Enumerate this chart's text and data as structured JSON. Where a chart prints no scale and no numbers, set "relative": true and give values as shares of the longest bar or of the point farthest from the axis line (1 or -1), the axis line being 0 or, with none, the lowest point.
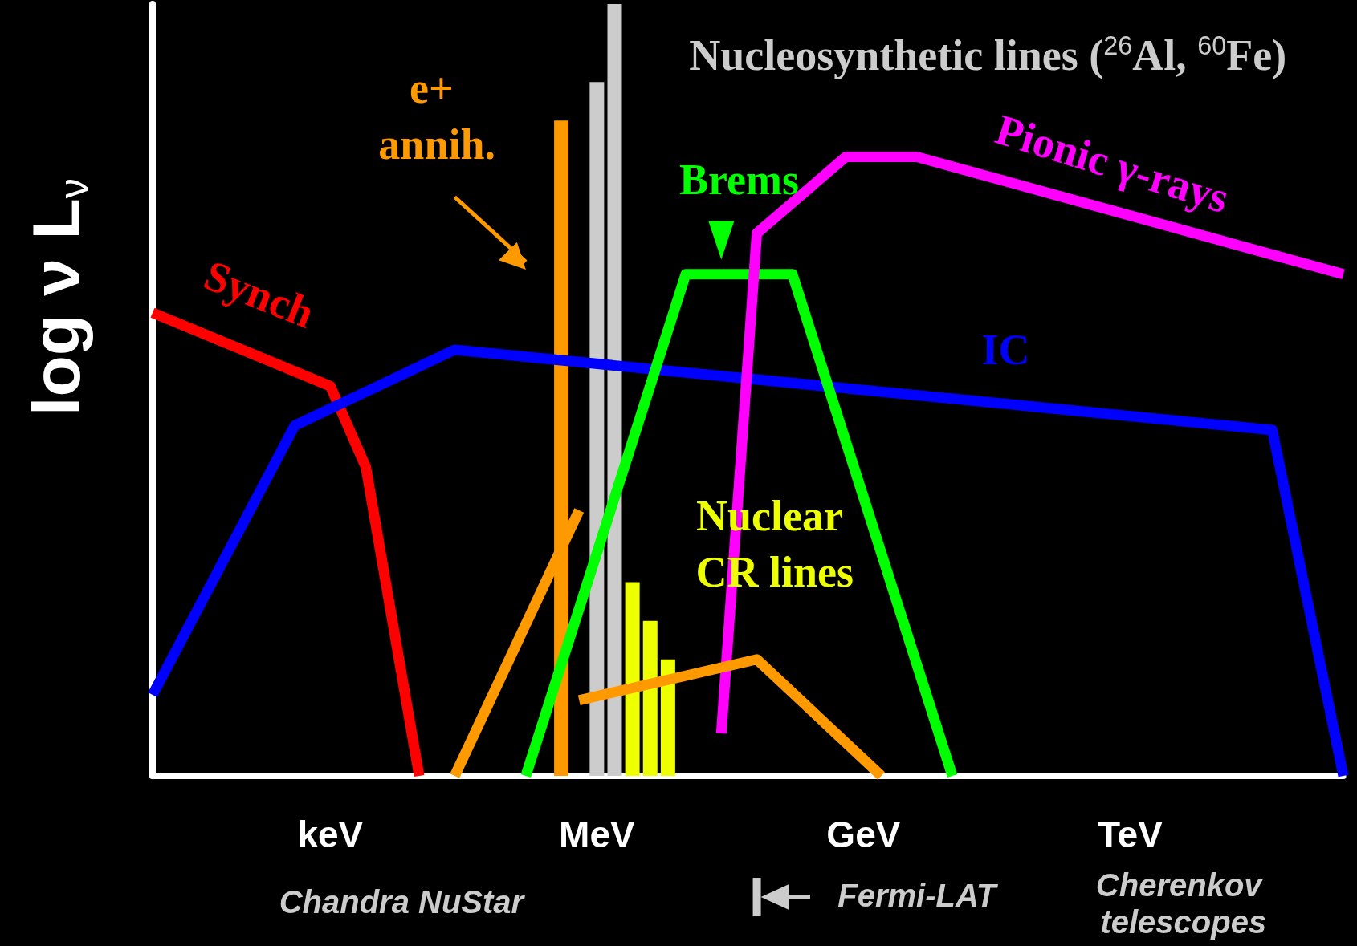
{
  "chart_data": {
    "type": "line",
    "relative": true,
    "ylabel": "log ν L$_{ν}$",
    "legend": false,
    "grid": false,
    "marker": "none",
    "categories": [
      null,
      null,
      null,
      null,
      null,
      null,
      null,
      null,
      null,
      null,
      "keV",
      null,
      null,
      null,
      null,
      null,
      null,
      null,
      null,
      null,
      null,
      null,
      null,
      null,
      null,
      "MeV",
      null,
      null,
      null,
      null,
      null,
      null,
      null,
      null,
      null,
      null,
      null,
      null,
      null,
      null,
      "GeV",
      null,
      null,
      null,
      null,
      null,
      null,
      null,
      null,
      null,
      null,
      null,
      null,
      null,
      null,
      "TeV",
      null,
      null,
      null,
      null,
      null,
      null,
      null,
      null,
      null,
      null,
      null,
      null
    ],
    "annotations": [
      "Chandra NuStar",
      "Fermi-LAT",
      "Cherenkov telescopes"
    ],
    "series": [
      {
        "name": "Synch",
        "color": "#ff0000",
        "values": [
          0.6,
          null,
          null,
          null,
          null,
          null,
          null,
          null,
          null,
          null,
          0.505,
          null,
          0.4,
          null,
          null,
          0,
          null,
          null,
          null,
          null,
          null,
          null,
          null,
          null,
          null,
          null,
          null,
          null,
          null,
          null,
          null,
          null,
          null,
          null,
          null,
          null,
          null,
          null,
          null,
          null,
          null,
          null,
          null,
          null,
          null,
          null,
          null,
          null,
          null,
          null,
          null,
          null,
          null,
          null,
          null,
          null,
          null,
          null,
          null,
          null,
          null,
          null,
          null,
          null,
          null,
          null,
          null,
          null
        ]
      },
      {
        "name": "IC",
        "color": "#0000ff",
        "values": [
          0.105,
          null,
          null,
          null,
          null,
          null,
          null,
          null,
          0.454,
          null,
          null,
          null,
          null,
          null,
          null,
          null,
          null,
          0.552,
          null,
          null,
          null,
          null,
          null,
          null,
          null,
          null,
          null,
          null,
          null,
          null,
          null,
          null,
          null,
          null,
          null,
          null,
          null,
          null,
          null,
          null,
          null,
          null,
          null,
          null,
          null,
          null,
          null,
          null,
          null,
          null,
          null,
          null,
          null,
          null,
          null,
          null,
          null,
          null,
          null,
          null,
          null,
          null,
          null,
          0.448,
          null,
          null,
          null,
          0
        ]
      },
      {
        "name": "Brems",
        "color": "#00ff00",
        "values": [
          null,
          null,
          null,
          null,
          null,
          null,
          null,
          null,
          null,
          null,
          null,
          null,
          null,
          null,
          null,
          null,
          null,
          null,
          null,
          null,
          null,
          0,
          null,
          null,
          null,
          null,
          null,
          null,
          null,
          null,
          0.65,
          null,
          null,
          null,
          null,
          null,
          0.65,
          null,
          null,
          null,
          null,
          null,
          null,
          null,
          null,
          0,
          null,
          null,
          null,
          null,
          null,
          null,
          null,
          null,
          null,
          null,
          null,
          null,
          null,
          null,
          null,
          null,
          null,
          null,
          null,
          null,
          null,
          null
        ]
      },
      {
        "name": "Pionic γ-rays",
        "color": "#ff00ff",
        "values": [
          null,
          null,
          null,
          null,
          null,
          null,
          null,
          null,
          null,
          null,
          null,
          null,
          null,
          null,
          null,
          null,
          null,
          null,
          null,
          null,
          null,
          null,
          null,
          null,
          null,
          null,
          null,
          null,
          null,
          null,
          null,
          null,
          0.055,
          null,
          0.703,
          null,
          null,
          null,
          null,
          0.802,
          null,
          null,
          null,
          0.802,
          null,
          null,
          null,
          null,
          null,
          null,
          null,
          null,
          null,
          null,
          null,
          null,
          null,
          null,
          null,
          null,
          null,
          null,
          null,
          null,
          null,
          null,
          null,
          0.65
        ]
      },
      {
        "color": "#ff9900",
        "values": [
          null,
          null,
          null,
          null,
          null,
          null,
          null,
          null,
          null,
          null,
          null,
          null,
          null,
          null,
          null,
          null,
          null,
          0,
          null,
          null,
          null,
          null,
          null,
          null,
          0.344,
          null,
          null,
          null,
          null,
          null,
          null,
          null,
          null,
          null,
          null,
          null,
          null,
          null,
          null,
          null,
          null,
          null,
          null,
          null,
          null,
          null,
          null,
          null,
          null,
          null,
          null,
          null,
          null,
          null,
          null,
          null,
          null,
          null,
          null,
          null,
          null,
          null,
          null,
          null,
          null,
          null,
          null,
          null
        ]
      },
      {
        "color": "#ff9900",
        "values": [
          null,
          null,
          null,
          null,
          null,
          null,
          null,
          null,
          null,
          null,
          null,
          null,
          null,
          null,
          null,
          null,
          null,
          null,
          null,
          null,
          null,
          null,
          null,
          null,
          0.098,
          null,
          null,
          null,
          null,
          null,
          null,
          null,
          null,
          null,
          0.151,
          null,
          null,
          null,
          null,
          null,
          null,
          0,
          null,
          null,
          null,
          null,
          null,
          null,
          null,
          null,
          null,
          null,
          null,
          null,
          null,
          null,
          null,
          null,
          null,
          null,
          null,
          null,
          null,
          null,
          null,
          null,
          null,
          null
        ]
      },
      {
        "name": "e+ annih.",
        "type": "bar",
        "color": "#ff9900",
        "values": [
          null,
          null,
          null,
          null,
          null,
          null,
          null,
          null,
          null,
          null,
          null,
          null,
          null,
          null,
          null,
          null,
          null,
          null,
          null,
          null,
          null,
          null,
          null,
          0.849,
          null,
          null,
          null,
          null,
          null,
          null,
          null,
          null,
          null,
          null,
          null,
          null,
          null,
          null,
          null,
          null,
          null,
          null,
          null,
          null,
          null,
          null,
          null,
          null,
          null,
          null,
          null,
          null,
          null,
          null,
          null,
          null,
          null,
          null,
          null,
          null,
          null,
          null,
          null,
          null,
          null,
          null,
          null,
          null
        ]
      },
      {
        "name": "Nucleosynthetic lines ($^{26}$Al, $^{60}$Fe)",
        "type": "bar",
        "color": "#cccccc",
        "values": [
          null,
          null,
          null,
          null,
          null,
          null,
          null,
          null,
          null,
          null,
          null,
          null,
          null,
          null,
          null,
          null,
          null,
          null,
          null,
          null,
          null,
          null,
          null,
          null,
          null,
          0.899,
          1,
          null,
          null,
          null,
          null,
          null,
          null,
          null,
          null,
          null,
          null,
          null,
          null,
          null,
          null,
          null,
          null,
          null,
          null,
          null,
          null,
          null,
          null,
          null,
          null,
          null,
          null,
          null,
          null,
          null,
          null,
          null,
          null,
          null,
          null,
          null,
          null,
          null,
          null,
          null,
          null,
          null
        ]
      },
      {
        "name": "Nuclear CR lines",
        "type": "bar",
        "color": "#eeff00",
        "values": [
          null,
          null,
          null,
          null,
          null,
          null,
          null,
          null,
          null,
          null,
          null,
          null,
          null,
          null,
          null,
          null,
          null,
          null,
          null,
          null,
          null,
          null,
          null,
          null,
          null,
          null,
          null,
          0.251,
          0.201,
          0.151,
          null,
          null,
          null,
          null,
          null,
          null,
          null,
          null,
          null,
          null,
          null,
          null,
          null,
          null,
          null,
          null,
          null,
          null,
          null,
          null,
          null,
          null,
          null,
          null,
          null,
          null,
          null,
          null,
          null,
          null,
          null,
          null,
          null,
          null,
          null,
          null,
          null,
          null
        ]
      }
    ]
  }
}
